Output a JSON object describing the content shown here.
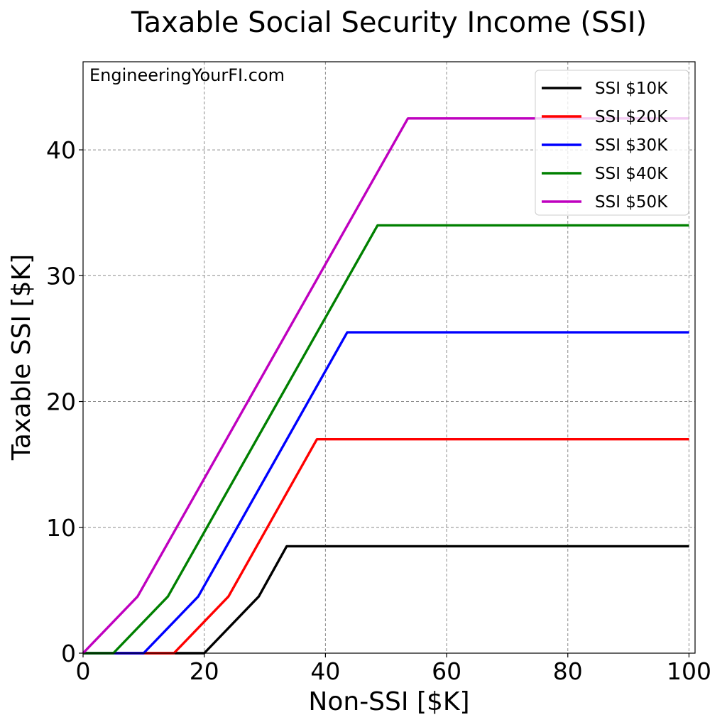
{
  "chart_data": {
    "type": "line",
    "title": "Taxable Social Security Income (SSI)",
    "xlabel": "Non-SSI [$K]",
    "ylabel": "Taxable SSI [$K]",
    "xlim": [
      0,
      101
    ],
    "ylim": [
      0,
      47
    ],
    "xticks": [
      0,
      20,
      40,
      60,
      80,
      100
    ],
    "yticks": [
      0,
      10,
      20,
      30,
      40
    ],
    "grid": true,
    "legend_position": "top-right",
    "watermark": "EngineeringYourFI.com",
    "series": [
      {
        "name": "SSI $10K",
        "color": "#000000",
        "x": [
          0,
          20,
          29,
          33.6,
          100
        ],
        "y": [
          0,
          0,
          4.5,
          8.5,
          8.5
        ]
      },
      {
        "name": "SSI $20K",
        "color": "#ff0000",
        "x": [
          0,
          15,
          24,
          38.6,
          100
        ],
        "y": [
          0,
          0,
          4.5,
          17,
          17
        ]
      },
      {
        "name": "SSI $30K",
        "color": "#0000ff",
        "x": [
          0,
          10,
          19,
          43.6,
          100
        ],
        "y": [
          0,
          0,
          4.5,
          25.5,
          25.5
        ]
      },
      {
        "name": "SSI $40K",
        "color": "#008000",
        "x": [
          0,
          5,
          14,
          48.6,
          100
        ],
        "y": [
          0,
          0,
          4.5,
          34,
          34
        ]
      },
      {
        "name": "SSI $50K",
        "color": "#bf00bf",
        "x": [
          0,
          9,
          53.6,
          100
        ],
        "y": [
          0,
          4.5,
          42.5,
          42.5
        ]
      }
    ]
  }
}
